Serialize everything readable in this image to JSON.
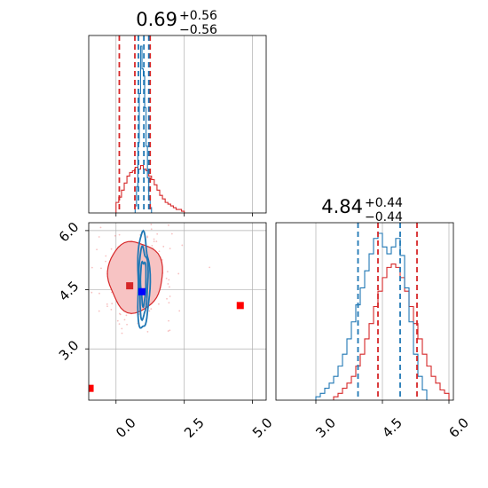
{
  "figure": {
    "panel_a_title": {
      "main": "0.69",
      "sup": "+0.56",
      "sub": "−0.56"
    },
    "panel_b_title": {
      "main": "4.84",
      "sup": "+0.44",
      "sub": "−0.44"
    }
  },
  "colors": {
    "red": "#d62728",
    "blue": "#1f77b4",
    "marker_blue": "#0000ff",
    "grid": "#b0b0b0"
  },
  "chart_data": [
    {
      "id": "hist-param1",
      "type": "histogram",
      "title": "0.69 +0.56 −0.56",
      "xlim": [
        -1.0,
        5.5
      ],
      "grid": true,
      "series": [
        {
          "color": "#d62728",
          "bin_edges": [
            0.0,
            0.1,
            0.2,
            0.3,
            0.4,
            0.5,
            0.6,
            0.7,
            0.8,
            0.9,
            1.0,
            1.1,
            1.2,
            1.3,
            1.4,
            1.5,
            1.6,
            1.7,
            1.8,
            1.9,
            2.0,
            2.1,
            2.2,
            2.3,
            2.4,
            2.5
          ],
          "counts": [
            0.06,
            0.09,
            0.13,
            0.17,
            0.21,
            0.23,
            0.24,
            0.26,
            0.25,
            0.27,
            0.25,
            0.24,
            0.21,
            0.19,
            0.16,
            0.13,
            0.1,
            0.08,
            0.06,
            0.05,
            0.04,
            0.03,
            0.02,
            0.02,
            0.01
          ]
        },
        {
          "color": "#1f77b4",
          "bin_edges": [
            0.7,
            0.75,
            0.8,
            0.85,
            0.9,
            0.95,
            1.0,
            1.05,
            1.1,
            1.15,
            1.2,
            1.25,
            1.3
          ],
          "counts": [
            0.04,
            0.15,
            0.4,
            0.68,
            0.95,
            0.82,
            0.78,
            0.6,
            0.38,
            0.2,
            0.08,
            0.03
          ]
        }
      ],
      "vlines": [
        {
          "x": 0.12,
          "color": "#d62728"
        },
        {
          "x": 0.69,
          "color": "#d62728"
        },
        {
          "x": 1.25,
          "color": "#d62728"
        },
        {
          "x": 0.82,
          "color": "#1f77b4"
        },
        {
          "x": 1.02,
          "color": "#1f77b4"
        },
        {
          "x": 1.2,
          "color": "#1f77b4"
        }
      ]
    },
    {
      "id": "joint-param1-param2",
      "type": "contour",
      "xlim": [
        -1.0,
        5.5
      ],
      "ylim": [
        1.7,
        6.2
      ],
      "xticks": [
        "0.0",
        "2.5",
        "5.0"
      ],
      "yticks": [
        "3.0",
        "4.5",
        "6.0"
      ],
      "xtick_values": [
        0.0,
        2.5,
        5.0
      ],
      "ytick_values": [
        3.0,
        4.5,
        6.0
      ],
      "grid": true,
      "red_density": {
        "center": [
          0.7,
          4.84
        ],
        "sigma": [
          0.5,
          0.45
        ],
        "levels": [
          0.5,
          1.0,
          1.5,
          2.0
        ],
        "color": "#d62728"
      },
      "blue_contours": [
        {
          "center": [
            1.0,
            4.7
          ],
          "sigma": [
            0.1,
            0.55
          ],
          "levels": [
            1.0,
            1.6,
            2.2
          ],
          "color": "#1f77b4"
        }
      ],
      "markers": [
        {
          "x": -0.95,
          "y": 2.0,
          "color": "#ff0000"
        },
        {
          "x": 4.55,
          "y": 4.1,
          "color": "#ff0000"
        },
        {
          "x": 0.95,
          "y": 4.45,
          "color": "#0000ff"
        },
        {
          "x": 0.5,
          "y": 4.6,
          "color": "#d62728"
        }
      ]
    },
    {
      "id": "hist-param2",
      "type": "histogram",
      "title": "4.84 +0.44 −0.44",
      "xlim": [
        2.1,
        6.1
      ],
      "xticks": [
        "3.0",
        "4.5",
        "6.0"
      ],
      "xtick_values": [
        3.0,
        4.5,
        6.0
      ],
      "grid": true,
      "series": [
        {
          "color": "#d62728",
          "bin_edges": [
            3.4,
            3.5,
            3.6,
            3.7,
            3.8,
            3.9,
            4.0,
            4.1,
            4.2,
            4.3,
            4.4,
            4.5,
            4.6,
            4.7,
            4.8,
            4.9,
            5.0,
            5.1,
            5.2,
            5.3,
            5.4,
            5.5,
            5.6,
            5.7,
            5.8,
            5.9,
            6.0
          ],
          "counts": [
            0.02,
            0.04,
            0.07,
            0.1,
            0.14,
            0.2,
            0.27,
            0.36,
            0.45,
            0.55,
            0.64,
            0.72,
            0.78,
            0.8,
            0.78,
            0.72,
            0.64,
            0.55,
            0.45,
            0.36,
            0.27,
            0.2,
            0.14,
            0.1,
            0.06,
            0.04
          ]
        },
        {
          "color": "#1f77b4",
          "bin_edges": [
            3.0,
            3.1,
            3.2,
            3.3,
            3.4,
            3.5,
            3.6,
            3.7,
            3.8,
            3.9,
            4.0,
            4.1,
            4.2,
            4.3,
            4.4,
            4.5,
            4.6,
            4.7,
            4.8,
            4.9,
            5.0,
            5.1,
            5.2,
            5.3,
            5.4,
            5.5
          ],
          "counts": [
            0.02,
            0.04,
            0.07,
            0.1,
            0.14,
            0.2,
            0.27,
            0.36,
            0.46,
            0.56,
            0.66,
            0.76,
            0.86,
            0.95,
            0.98,
            0.9,
            0.86,
            0.9,
            0.95,
            0.85,
            0.66,
            0.46,
            0.27,
            0.14,
            0.06
          ]
        }
      ],
      "vlines": [
        {
          "x": 4.4,
          "color": "#d62728"
        },
        {
          "x": 5.28,
          "color": "#d62728"
        },
        {
          "x": 3.95,
          "color": "#1f77b4"
        },
        {
          "x": 4.9,
          "color": "#1f77b4"
        }
      ]
    }
  ]
}
